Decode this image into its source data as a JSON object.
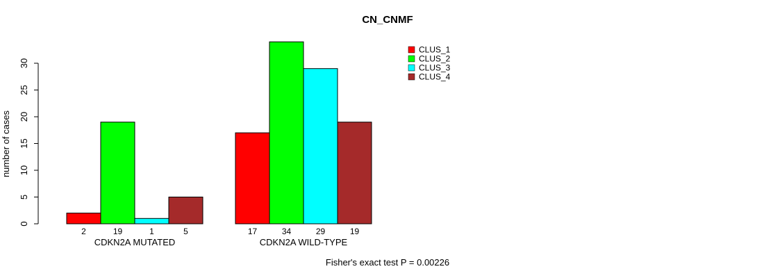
{
  "chart_data": {
    "type": "bar",
    "title": "CN_CNMF",
    "ylabel": "number of cases",
    "xlabel": "",
    "ylim": [
      0,
      30
    ],
    "yticks": [
      0,
      5,
      10,
      15,
      20,
      25,
      30
    ],
    "grid": false,
    "legend_position": "top-right-inside",
    "series": [
      {
        "name": "CLUS_1",
        "color": "#FF0000"
      },
      {
        "name": "CLUS_2",
        "color": "#00FF00"
      },
      {
        "name": "CLUS_3",
        "color": "#00FFFF"
      },
      {
        "name": "CLUS_4",
        "color": "#A52A2A"
      }
    ],
    "categories": [
      "CDKN2A MUTATED",
      "CDKN2A WILD-TYPE"
    ],
    "groups": [
      {
        "label": "CDKN2A MUTATED",
        "values": [
          2,
          19,
          1,
          5
        ]
      },
      {
        "label": "CDKN2A WILD-TYPE",
        "values": [
          17,
          34,
          29,
          19
        ]
      }
    ],
    "bar_value_labels": true,
    "footnote": "Fisher's exact test P = 0.00226"
  },
  "colors": {
    "background": "#FFFFFF",
    "axis": "#000000",
    "text": "#000000",
    "bar_border": "#000000"
  }
}
